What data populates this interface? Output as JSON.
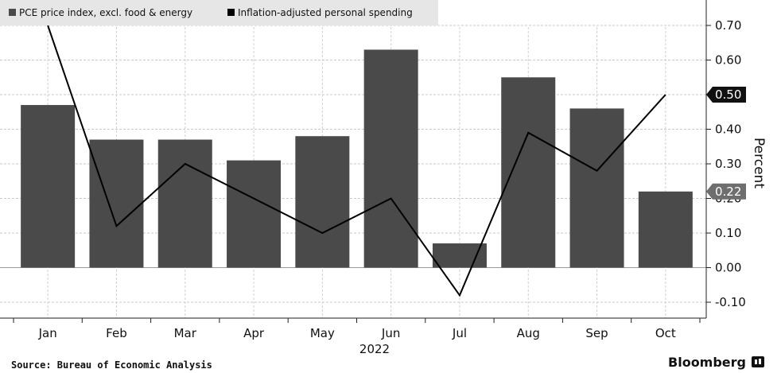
{
  "legend": {
    "bar_label": "PCE price index, excl. food & energy",
    "line_label": "Inflation-adjusted personal spending"
  },
  "footer": {
    "source": "Source: Bureau of Economic Analysis",
    "brand": "Bloomberg"
  },
  "chart_data": {
    "type": "bar",
    "categories": [
      "Jan",
      "Feb",
      "Mar",
      "Apr",
      "May",
      "Jun",
      "Jul",
      "Aug",
      "Sep",
      "Oct"
    ],
    "year_label": "2022",
    "ylabel": "Percent",
    "ylim": [
      -0.15,
      0.78
    ],
    "yticks": [
      "0.70",
      "0.60",
      "0.50",
      "0.40",
      "0.30",
      "0.20",
      "0.10",
      "0.00",
      "-0.10"
    ],
    "ytick_values": [
      0.7,
      0.6,
      0.5,
      0.4,
      0.3,
      0.2,
      0.1,
      0.0,
      -0.1
    ],
    "grid": true,
    "y_axis_side": "right",
    "series": [
      {
        "name": "PCE price index, excl. food & energy",
        "kind": "bar",
        "color": "#4a4a4a",
        "values": [
          0.47,
          0.37,
          0.37,
          0.31,
          0.38,
          0.63,
          0.07,
          0.55,
          0.46,
          0.22
        ]
      },
      {
        "name": "Inflation-adjusted personal spending",
        "kind": "line",
        "color": "#000000",
        "values": [
          0.7,
          0.12,
          0.3,
          0.2,
          0.1,
          0.2,
          -0.08,
          0.39,
          0.28,
          0.5
        ]
      }
    ],
    "end_tags": [
      {
        "label": "0.50",
        "value": 0.5,
        "style": "dark"
      },
      {
        "label": "0.22",
        "value": 0.22,
        "style": "gray"
      }
    ]
  }
}
